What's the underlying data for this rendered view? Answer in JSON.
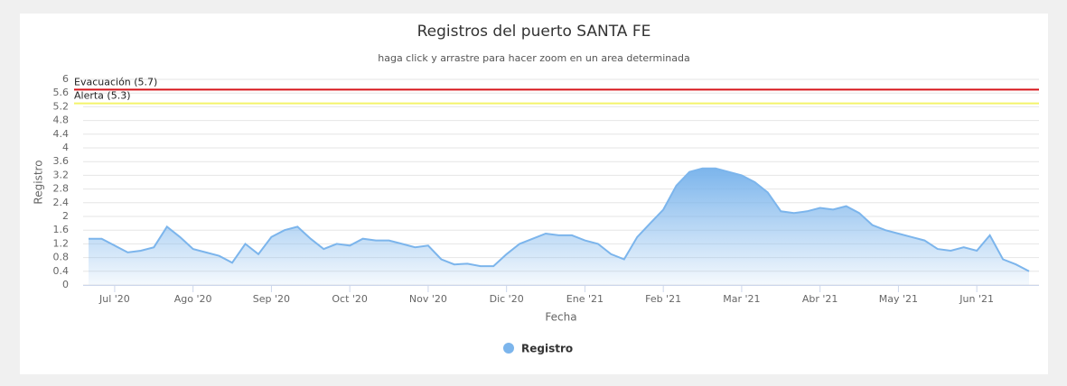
{
  "chart_data": {
    "type": "area",
    "title": "Registros del puerto SANTA FE",
    "subtitle": "haga click y arrastre para hacer zoom en un area determinada",
    "y_label": "Registro",
    "x_label": "Fecha",
    "categories": [
      null,
      null,
      "Jul '20",
      null,
      null,
      null,
      null,
      null,
      "Ago '20",
      null,
      null,
      null,
      null,
      null,
      "Sep '20",
      null,
      null,
      null,
      null,
      null,
      "Oct '20",
      null,
      null,
      null,
      null,
      null,
      "Nov '20",
      null,
      null,
      null,
      null,
      null,
      "Dic '20",
      null,
      null,
      null,
      null,
      null,
      "Ene '21",
      null,
      null,
      null,
      null,
      null,
      "Feb '21",
      null,
      null,
      null,
      null,
      null,
      "Mar '21",
      null,
      null,
      null,
      null,
      null,
      "Abr '21",
      null,
      null,
      null,
      null,
      null,
      "May '21",
      null,
      null,
      null,
      null,
      null,
      "Jun '21",
      null,
      null,
      null,
      null
    ],
    "series": [
      {
        "name": "Registro",
        "color": "#7cb5ec",
        "values": [
          1.35,
          1.35,
          1.15,
          0.95,
          1.0,
          1.1,
          1.7,
          1.4,
          1.05,
          0.95,
          0.85,
          0.65,
          1.2,
          0.9,
          1.4,
          1.6,
          1.7,
          1.35,
          1.05,
          1.2,
          1.15,
          1.35,
          1.3,
          1.3,
          1.2,
          1.1,
          1.15,
          0.75,
          0.6,
          0.62,
          0.55,
          0.55,
          0.9,
          1.2,
          1.35,
          1.5,
          1.45,
          1.45,
          1.3,
          1.2,
          0.9,
          0.75,
          1.4,
          1.8,
          2.2,
          2.9,
          3.3,
          3.4,
          3.4,
          3.3,
          3.2,
          3.0,
          2.7,
          2.15,
          2.1,
          2.15,
          2.25,
          2.2,
          2.3,
          2.1,
          1.75,
          1.6,
          1.5,
          1.4,
          1.3,
          1.05,
          1.0,
          1.1,
          1.0,
          1.45,
          0.75,
          0.6,
          0.4
        ]
      }
    ],
    "ylim": [
      0,
      6
    ],
    "yticks": [
      0,
      0.4,
      0.8,
      1.2,
      1.6,
      2,
      2.4,
      2.8,
      3.2,
      3.6,
      4,
      4.4,
      4.8,
      5.2,
      5.6,
      6
    ],
    "grid": true,
    "plot_lines": [
      {
        "label": "Evacuación (5.7)",
        "value": 5.7,
        "color": "#d7141a"
      },
      {
        "label": "Alerta (5.3)",
        "value": 5.3,
        "color": "#f4f46a"
      }
    ],
    "legend": "bottom"
  }
}
